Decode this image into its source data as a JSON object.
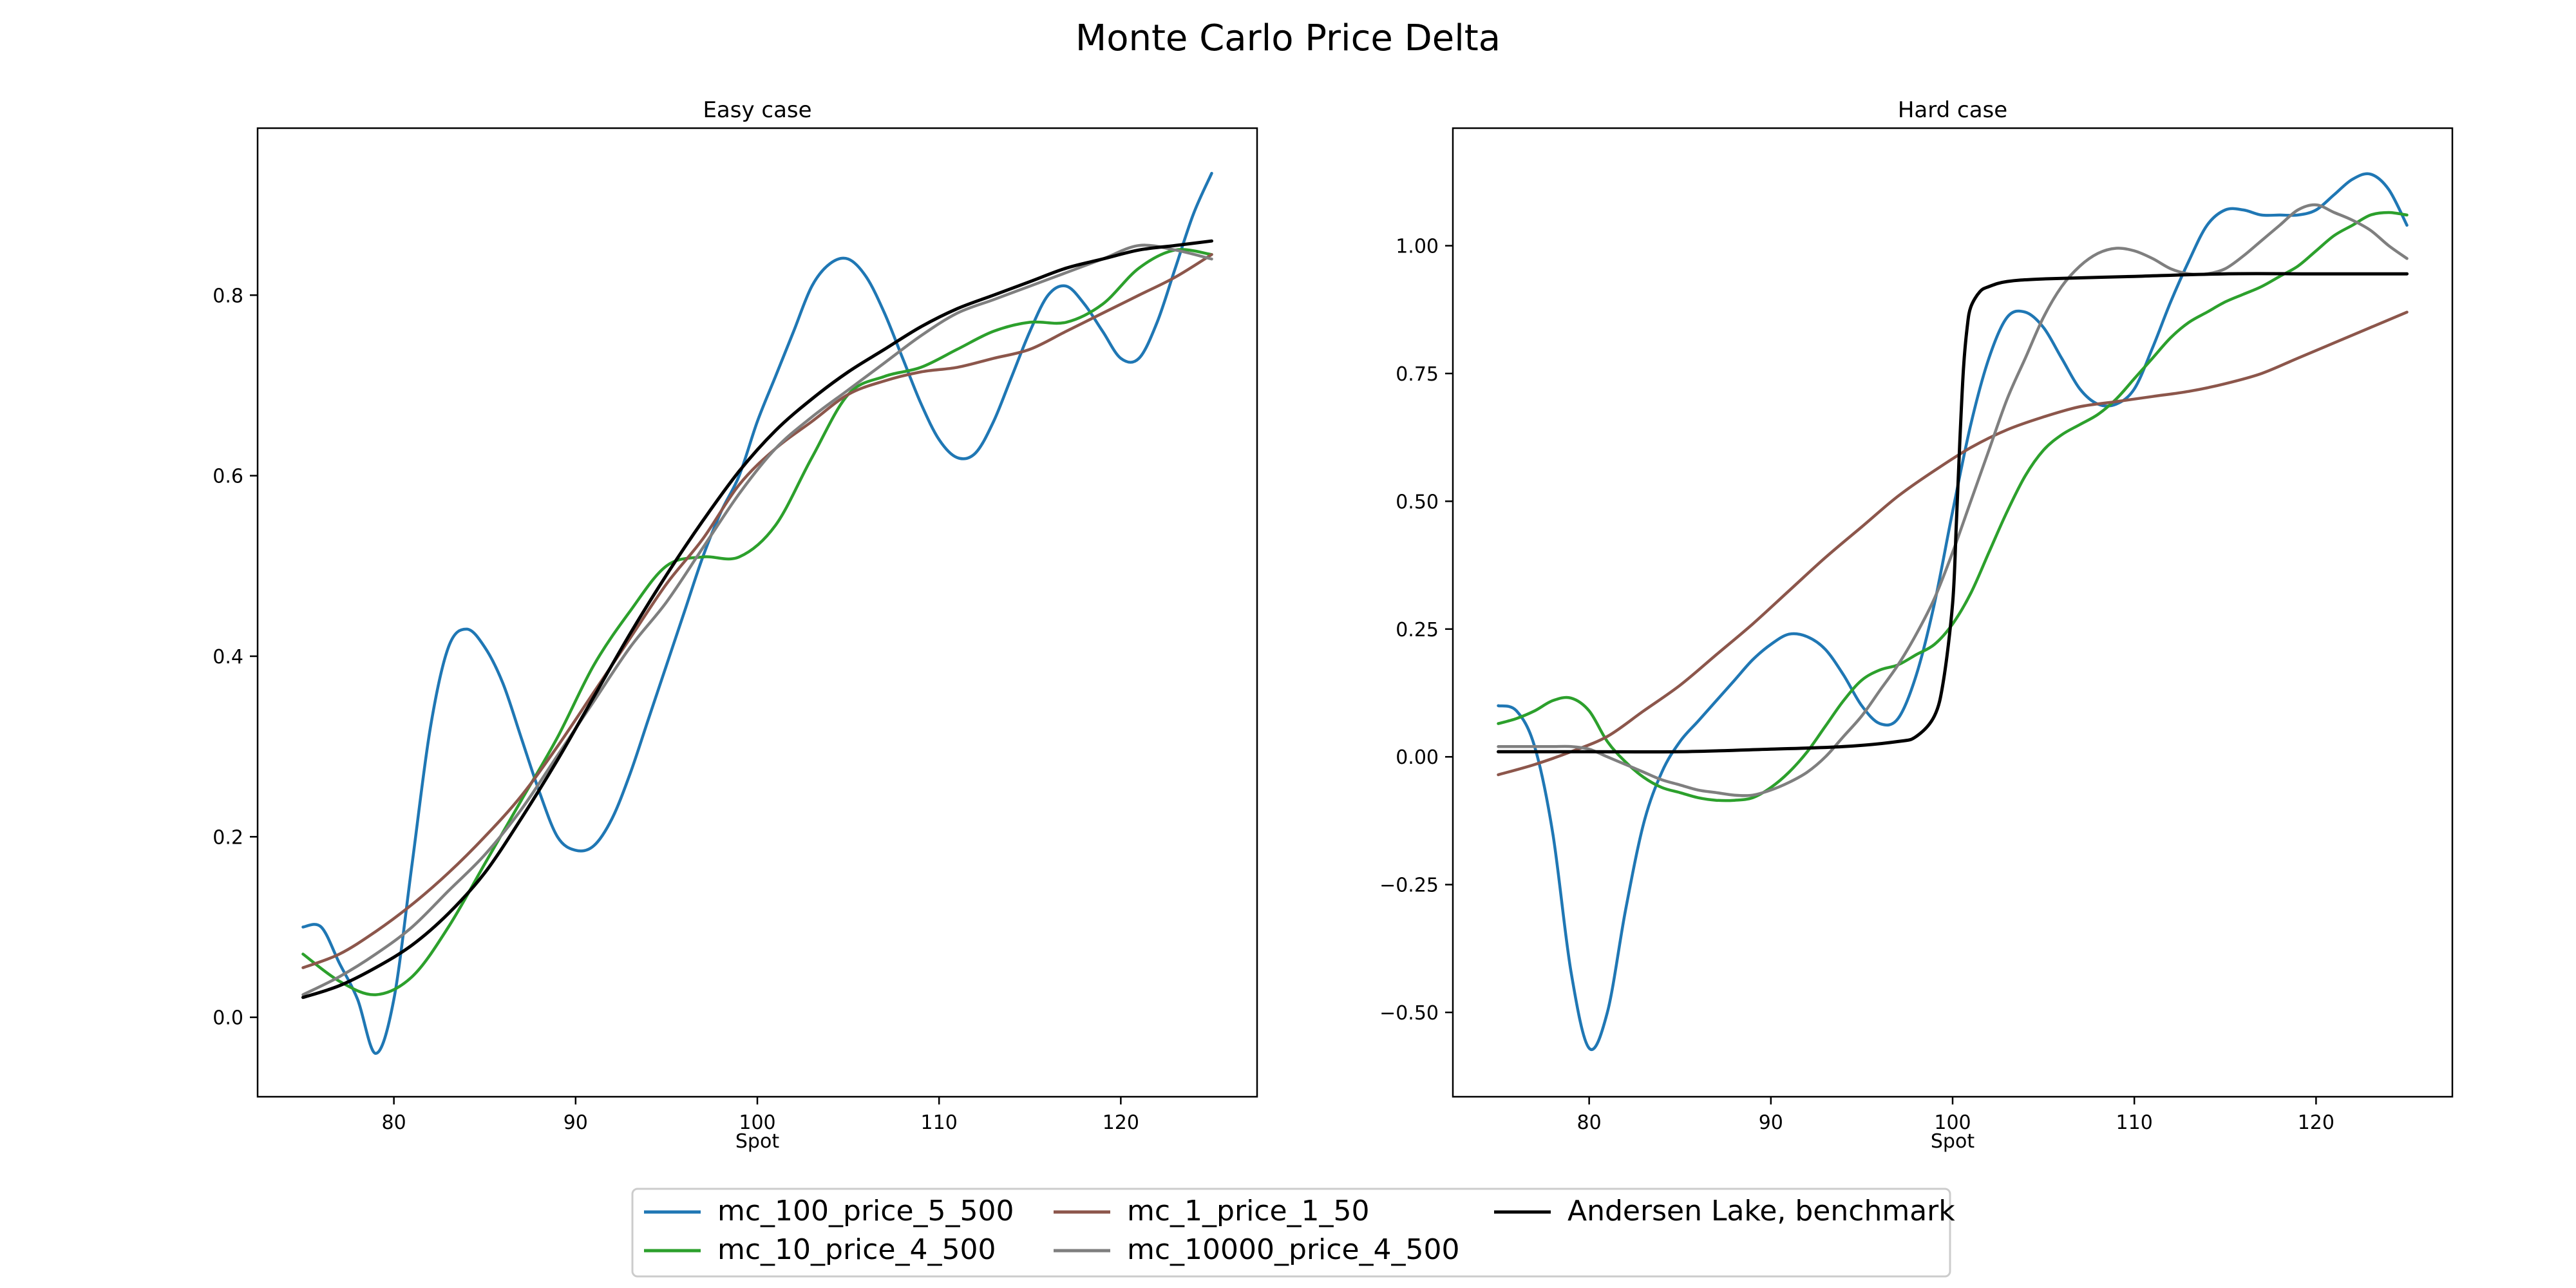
{
  "figure": {
    "title": "Monte Carlo Price Delta"
  },
  "colors": {
    "mc_100_price_5_500": "#1f77b4",
    "mc_10_price_4_500": "#2ca02c",
    "mc_1_price_1_50": "#8c564b",
    "mc_10000_price_4_500": "#7f7f7f",
    "benchmark": "#000000"
  },
  "legend": {
    "placement": "bottom-center",
    "entries": [
      {
        "key": "mc_100_price_5_500",
        "label": "mc_100_price_5_500"
      },
      {
        "key": "mc_10_price_4_500",
        "label": "mc_10_price_4_500"
      },
      {
        "key": "mc_1_price_1_50",
        "label": "mc_1_price_1_50"
      },
      {
        "key": "mc_10000_price_4_500",
        "label": "mc_10000_price_4_500"
      },
      {
        "key": "benchmark",
        "label": "Andersen Lake, benchmark"
      }
    ]
  },
  "chart_data": [
    {
      "type": "line",
      "title": "Easy case",
      "xlabel": "Spot",
      "ylabel": "",
      "xlim": [
        72.5,
        127.5
      ],
      "ylim": [
        -0.088,
        0.985
      ],
      "xticks": [
        80,
        90,
        100,
        110,
        120
      ],
      "xtick_labels": [
        "80",
        "90",
        "100",
        "110",
        "120"
      ],
      "yticks": [
        0.0,
        0.2,
        0.4,
        0.6,
        0.8
      ],
      "ytick_labels": [
        "0.0",
        "0.2",
        "0.4",
        "0.6",
        "0.8"
      ],
      "grid": false,
      "series": [
        {
          "name": "mc_100_price_5_500",
          "x": [
            75,
            76,
            77,
            78,
            79,
            80,
            81,
            82,
            83,
            84,
            85,
            86,
            87,
            88,
            89,
            90,
            91,
            92,
            93,
            94,
            95,
            96,
            97,
            98,
            99,
            100,
            101,
            102,
            103,
            104,
            105,
            106,
            107,
            108,
            109,
            110,
            111,
            112,
            113,
            114,
            115,
            116,
            117,
            118,
            119,
            120,
            121,
            122,
            123,
            124,
            125
          ],
          "y": [
            0.1,
            0.1,
            0.06,
            0.02,
            -0.04,
            0.02,
            0.17,
            0.32,
            0.41,
            0.43,
            0.41,
            0.37,
            0.31,
            0.25,
            0.2,
            0.185,
            0.19,
            0.22,
            0.27,
            0.33,
            0.39,
            0.45,
            0.51,
            0.56,
            0.6,
            0.66,
            0.71,
            0.76,
            0.81,
            0.835,
            0.84,
            0.82,
            0.78,
            0.73,
            0.68,
            0.64,
            0.62,
            0.625,
            0.66,
            0.71,
            0.76,
            0.8,
            0.81,
            0.79,
            0.76,
            0.73,
            0.73,
            0.77,
            0.83,
            0.89,
            0.935
          ]
        },
        {
          "name": "mc_10_price_4_500",
          "x": [
            75,
            77,
            79,
            81,
            83,
            85,
            87,
            89,
            91,
            93,
            95,
            97,
            99,
            101,
            103,
            105,
            107,
            109,
            111,
            113,
            115,
            117,
            119,
            121,
            123,
            125
          ],
          "y": [
            0.07,
            0.04,
            0.025,
            0.045,
            0.1,
            0.17,
            0.24,
            0.31,
            0.39,
            0.45,
            0.5,
            0.51,
            0.51,
            0.545,
            0.62,
            0.69,
            0.71,
            0.72,
            0.74,
            0.76,
            0.77,
            0.77,
            0.79,
            0.83,
            0.85,
            0.845
          ]
        },
        {
          "name": "mc_1_price_1_50",
          "x": [
            75,
            77,
            79,
            81,
            83,
            85,
            87,
            89,
            91,
            93,
            95,
            97,
            99,
            101,
            103,
            105,
            107,
            109,
            111,
            113,
            115,
            117,
            119,
            121,
            123,
            125
          ],
          "y": [
            0.055,
            0.07,
            0.095,
            0.125,
            0.16,
            0.2,
            0.245,
            0.3,
            0.36,
            0.42,
            0.48,
            0.53,
            0.59,
            0.63,
            0.66,
            0.69,
            0.705,
            0.715,
            0.72,
            0.73,
            0.74,
            0.76,
            0.78,
            0.8,
            0.82,
            0.845
          ]
        },
        {
          "name": "mc_10000_price_4_500",
          "x": [
            75,
            77,
            79,
            81,
            83,
            85,
            87,
            89,
            91,
            93,
            95,
            97,
            99,
            101,
            103,
            105,
            107,
            109,
            111,
            113,
            115,
            117,
            119,
            121,
            123,
            125
          ],
          "y": [
            0.025,
            0.045,
            0.07,
            0.1,
            0.14,
            0.18,
            0.23,
            0.29,
            0.35,
            0.41,
            0.46,
            0.52,
            0.58,
            0.63,
            0.665,
            0.695,
            0.725,
            0.755,
            0.78,
            0.795,
            0.81,
            0.825,
            0.84,
            0.855,
            0.85,
            0.84
          ]
        },
        {
          "name": "Andersen Lake, benchmark",
          "x": [
            75,
            77,
            79,
            81,
            83,
            85,
            87,
            89,
            91,
            93,
            95,
            97,
            99,
            101,
            103,
            105,
            107,
            109,
            111,
            113,
            115,
            117,
            119,
            121,
            123,
            125
          ],
          "y": [
            0.022,
            0.035,
            0.055,
            0.08,
            0.115,
            0.16,
            0.22,
            0.285,
            0.355,
            0.425,
            0.49,
            0.55,
            0.605,
            0.65,
            0.685,
            0.715,
            0.74,
            0.765,
            0.785,
            0.8,
            0.815,
            0.83,
            0.84,
            0.85,
            0.855,
            0.86
          ]
        }
      ]
    },
    {
      "type": "line",
      "title": "Hard case",
      "xlabel": "Spot",
      "ylabel": "",
      "xlim": [
        72.5,
        127.5
      ],
      "ylim": [
        -0.665,
        1.23
      ],
      "xticks": [
        80,
        90,
        100,
        110,
        120
      ],
      "xtick_labels": [
        "80",
        "90",
        "100",
        "110",
        "120"
      ],
      "yticks": [
        -0.5,
        -0.25,
        0.0,
        0.25,
        0.5,
        0.75,
        1.0
      ],
      "ytick_labels": [
        "−0.50",
        "−0.25",
        "0.00",
        "0.25",
        "0.50",
        "0.75",
        "1.00"
      ],
      "grid": false,
      "series": [
        {
          "name": "mc_100_price_5_500",
          "x": [
            75,
            76,
            77,
            78,
            79,
            80,
            81,
            82,
            83,
            84,
            85,
            86,
            87,
            88,
            89,
            90,
            91,
            92,
            93,
            94,
            95,
            96,
            97,
            98,
            99,
            100,
            101,
            102,
            103,
            104,
            105,
            106,
            107,
            108,
            109,
            110,
            111,
            112,
            113,
            114,
            115,
            116,
            117,
            118,
            119,
            120,
            121,
            122,
            123,
            124,
            125
          ],
          "y": [
            0.1,
            0.09,
            0.02,
            -0.15,
            -0.42,
            -0.57,
            -0.5,
            -0.3,
            -0.13,
            -0.03,
            0.03,
            0.07,
            0.11,
            0.15,
            0.19,
            0.22,
            0.24,
            0.235,
            0.21,
            0.16,
            0.1,
            0.065,
            0.075,
            0.16,
            0.3,
            0.48,
            0.65,
            0.78,
            0.86,
            0.87,
            0.84,
            0.78,
            0.72,
            0.69,
            0.69,
            0.72,
            0.8,
            0.89,
            0.97,
            1.04,
            1.07,
            1.07,
            1.06,
            1.06,
            1.06,
            1.07,
            1.1,
            1.13,
            1.14,
            1.11,
            1.04
          ]
        },
        {
          "name": "mc_10_price_4_500",
          "x": [
            75,
            76,
            77,
            78,
            79,
            80,
            81,
            82,
            83,
            84,
            85,
            86,
            87,
            88,
            89,
            90,
            91,
            92,
            93,
            94,
            95,
            96,
            97,
            98,
            99,
            100,
            101,
            102,
            103,
            104,
            105,
            106,
            107,
            108,
            109,
            110,
            111,
            112,
            113,
            114,
            115,
            116,
            117,
            118,
            119,
            120,
            121,
            122,
            123,
            124,
            125
          ],
          "y": [
            0.065,
            0.075,
            0.09,
            0.11,
            0.115,
            0.09,
            0.03,
            -0.01,
            -0.04,
            -0.06,
            -0.07,
            -0.08,
            -0.085,
            -0.085,
            -0.08,
            -0.06,
            -0.03,
            0.01,
            0.06,
            0.11,
            0.15,
            0.17,
            0.18,
            0.2,
            0.22,
            0.26,
            0.32,
            0.4,
            0.48,
            0.55,
            0.6,
            0.63,
            0.65,
            0.67,
            0.7,
            0.74,
            0.78,
            0.82,
            0.85,
            0.87,
            0.89,
            0.905,
            0.92,
            0.94,
            0.96,
            0.99,
            1.02,
            1.04,
            1.06,
            1.065,
            1.06
          ]
        },
        {
          "name": "mc_1_price_1_50",
          "x": [
            75,
            77,
            79,
            81,
            83,
            85,
            87,
            89,
            91,
            93,
            95,
            97,
            99,
            101,
            103,
            105,
            107,
            109,
            111,
            113,
            115,
            117,
            119,
            121,
            123,
            125
          ],
          "y": [
            -0.035,
            -0.015,
            0.01,
            0.04,
            0.09,
            0.14,
            0.2,
            0.26,
            0.325,
            0.39,
            0.45,
            0.51,
            0.56,
            0.605,
            0.64,
            0.665,
            0.685,
            0.695,
            0.705,
            0.715,
            0.73,
            0.75,
            0.78,
            0.81,
            0.84,
            0.87
          ]
        },
        {
          "name": "mc_10000_price_4_500",
          "x": [
            75,
            76,
            77,
            78,
            79,
            80,
            81,
            82,
            83,
            84,
            85,
            86,
            87,
            88,
            89,
            90,
            91,
            92,
            93,
            94,
            95,
            96,
            97,
            98,
            99,
            100,
            101,
            102,
            103,
            104,
            105,
            106,
            107,
            108,
            109,
            110,
            111,
            112,
            113,
            114,
            115,
            116,
            117,
            118,
            119,
            120,
            121,
            122,
            123,
            124,
            125
          ],
          "y": [
            0.02,
            0.02,
            0.02,
            0.02,
            0.02,
            0.015,
            0.0,
            -0.015,
            -0.03,
            -0.045,
            -0.055,
            -0.065,
            -0.07,
            -0.075,
            -0.075,
            -0.065,
            -0.05,
            -0.03,
            0.0,
            0.04,
            0.08,
            0.13,
            0.18,
            0.24,
            0.31,
            0.4,
            0.5,
            0.6,
            0.7,
            0.78,
            0.86,
            0.92,
            0.96,
            0.985,
            0.995,
            0.99,
            0.975,
            0.955,
            0.945,
            0.945,
            0.955,
            0.98,
            1.01,
            1.04,
            1.07,
            1.08,
            1.065,
            1.05,
            1.03,
            1.0,
            0.975
          ]
        },
        {
          "name": "Andersen Lake, benchmark",
          "x": [
            75,
            80,
            85,
            90,
            94,
            97,
            98,
            99,
            99.5,
            100,
            100.2,
            100.4,
            100.6,
            100.8,
            101,
            101.5,
            102,
            103,
            105,
            110,
            115,
            120,
            125
          ],
          "y": [
            0.01,
            0.01,
            0.01,
            0.015,
            0.02,
            0.03,
            0.04,
            0.08,
            0.15,
            0.3,
            0.45,
            0.62,
            0.76,
            0.84,
            0.88,
            0.91,
            0.92,
            0.93,
            0.935,
            0.94,
            0.945,
            0.945,
            0.945
          ]
        }
      ]
    }
  ]
}
